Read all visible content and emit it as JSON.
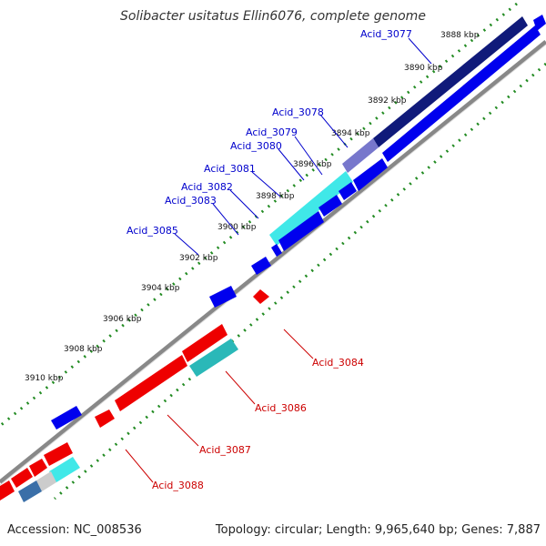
{
  "title": "Solibacter usitatus Ellin6076, complete genome",
  "footer": {
    "accession": "Accession: NC_008536",
    "summary": "Topology: circular; Length: 9,965,640 bp; Genes: 7,887"
  },
  "colors": {
    "forward": "#0000ee",
    "reverse": "#ee0000",
    "backbone": "#888888",
    "dots": "#228b22",
    "label_forward": "#0000cc",
    "label_reverse": "#cc0000"
  },
  "ticks": [
    "3888 kbp",
    "3890 kbp",
    "3892 kbp",
    "3894 kbp",
    "3896 kbp",
    "3898 kbp",
    "3900 kbp",
    "3902 kbp",
    "3904 kbp",
    "3906 kbp",
    "3908 kbp",
    "3910 kbp"
  ],
  "labels_forward": [
    "Acid_3077",
    "Acid_3078",
    "Acid_3079",
    "Acid_3080",
    "Acid_3081",
    "Acid_3082",
    "Acid_3083",
    "Acid_3085"
  ],
  "labels_reverse": [
    "Acid_3084",
    "Acid_3086",
    "Acid_3087",
    "Acid_3088"
  ]
}
